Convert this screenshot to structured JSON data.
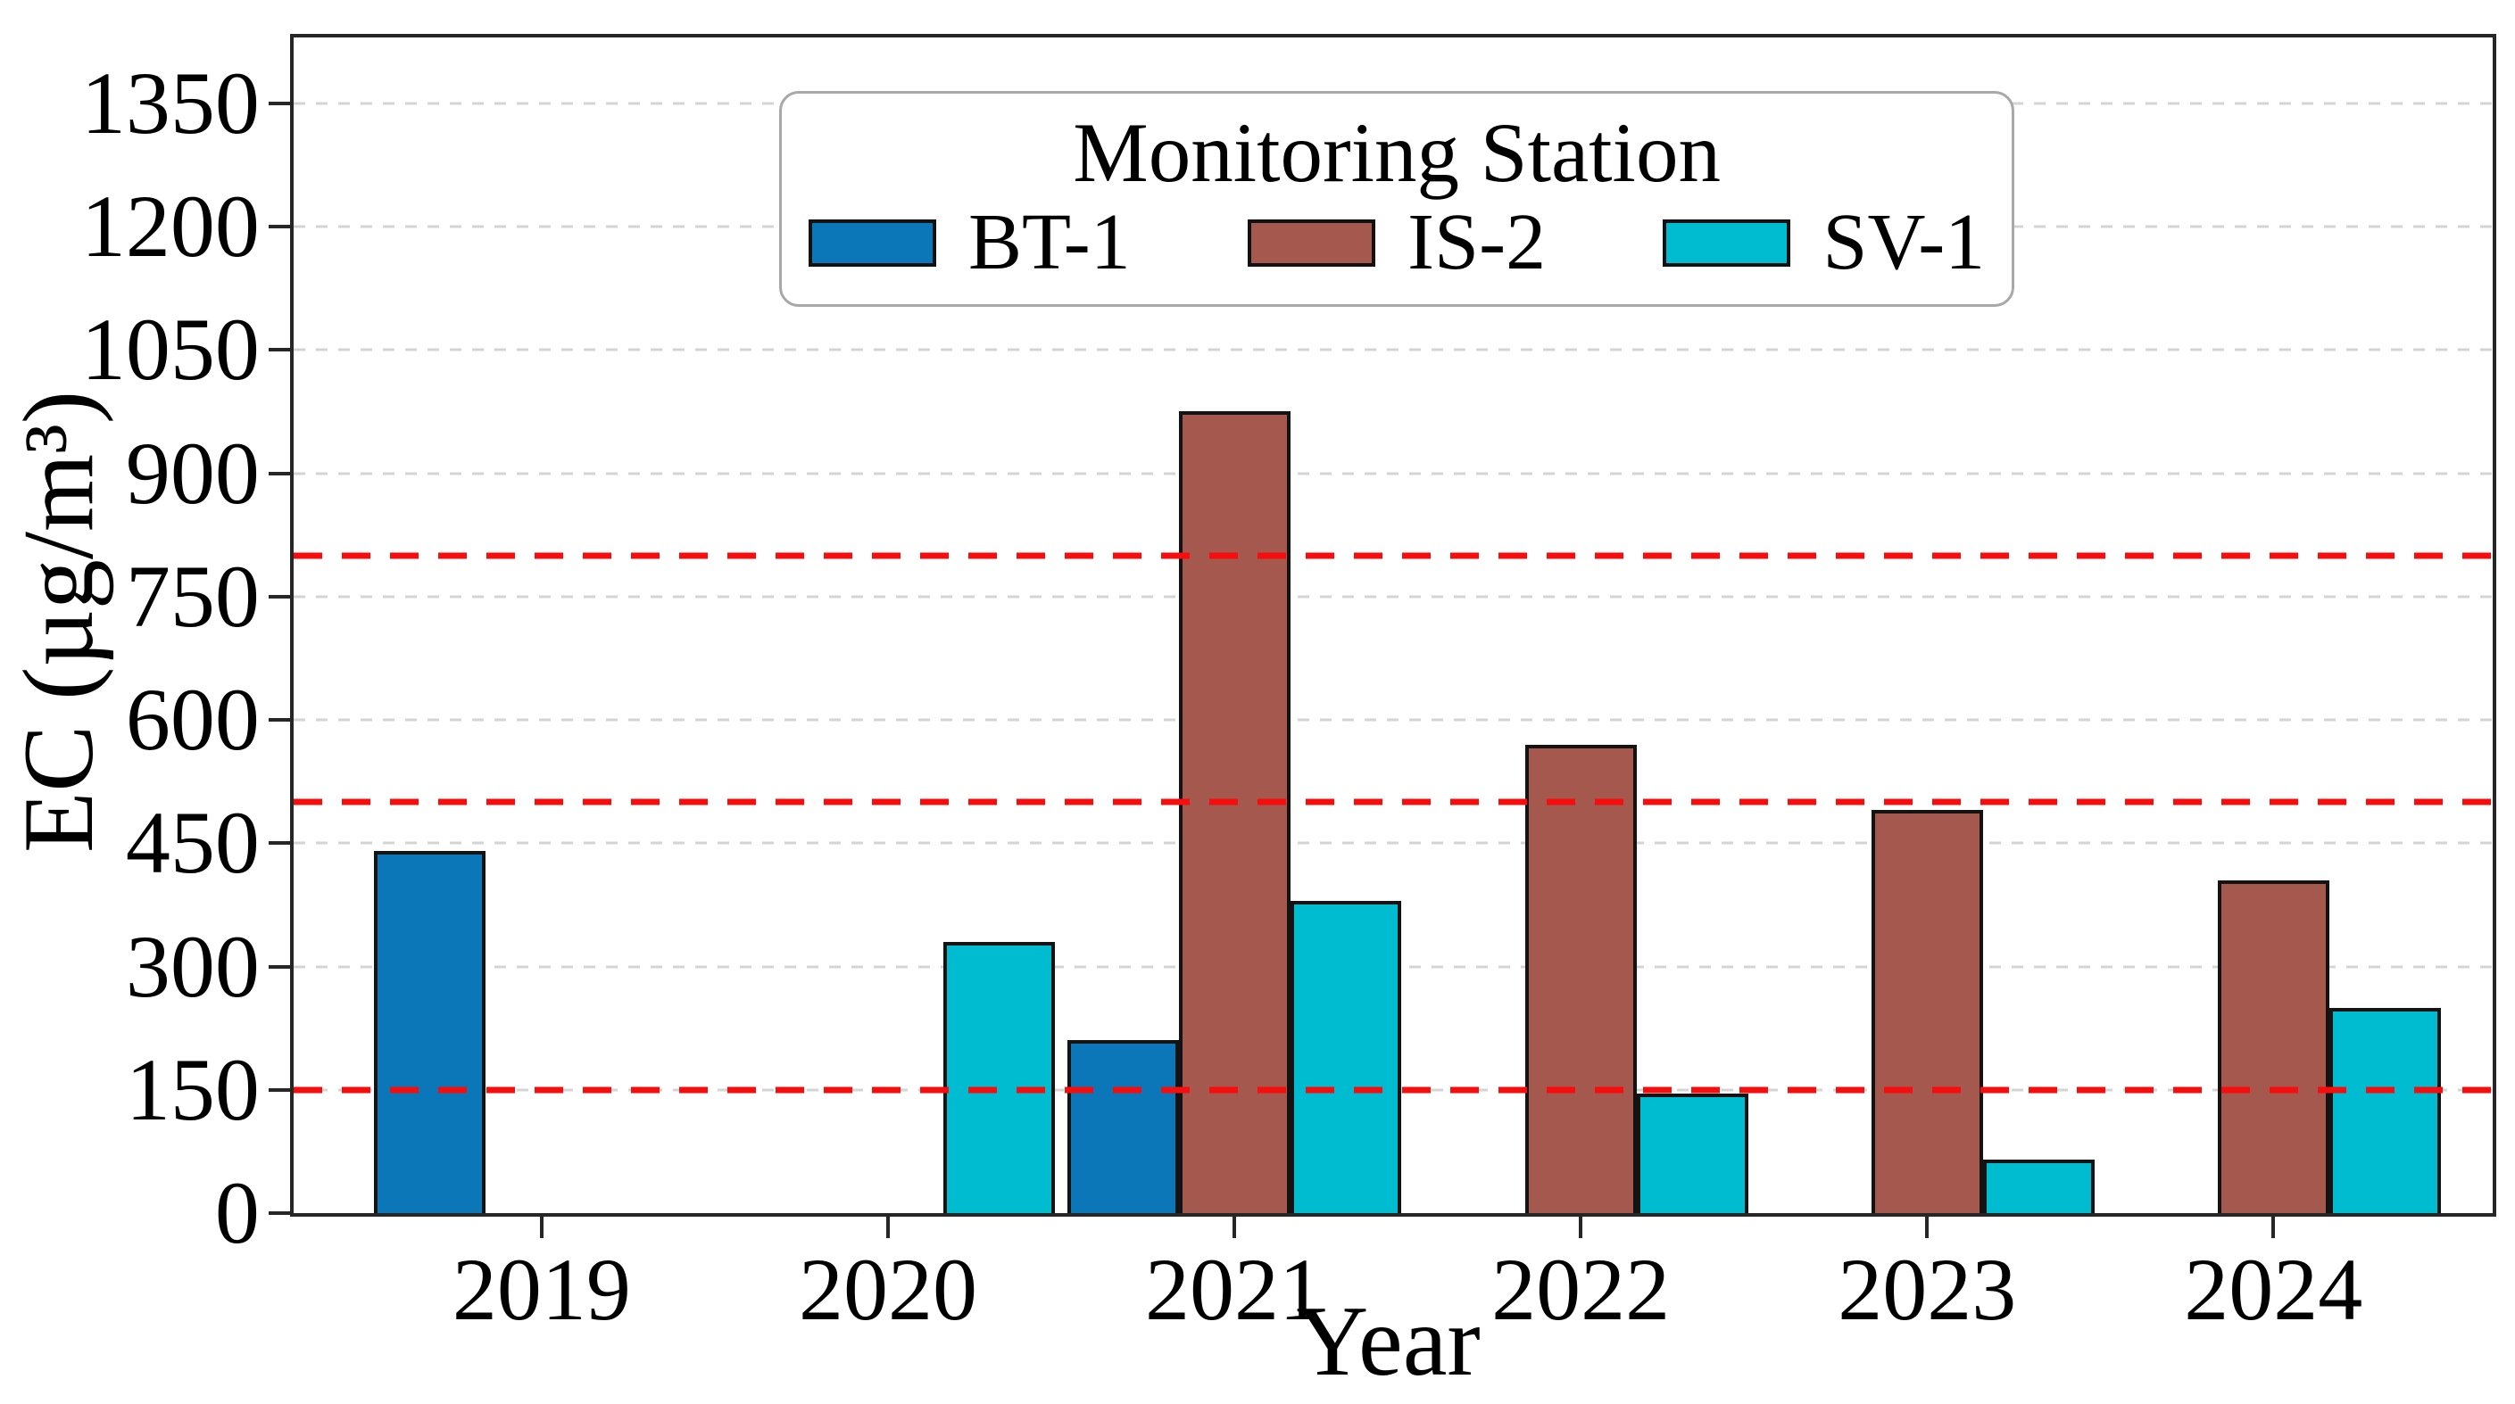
{
  "chart_data": {
    "type": "bar",
    "title": "",
    "xlabel": "Year",
    "ylabel": "EC (µg/m³)",
    "categories": [
      "2019",
      "2020",
      "2021",
      "2022",
      "2023",
      "2024"
    ],
    "series": [
      {
        "name": "BT-1",
        "color": "#0b76b8",
        "values": [
          440,
          null,
          210,
          null,
          null,
          null
        ]
      },
      {
        "name": "IS-2",
        "color": "#a5584e",
        "values": [
          null,
          null,
          975,
          570,
          490,
          405
        ]
      },
      {
        "name": "SV-1",
        "color": "#00bcd0",
        "values": [
          null,
          330,
          380,
          145,
          65,
          250
        ]
      }
    ],
    "y_ticks": [
      0,
      150,
      300,
      450,
      600,
      750,
      900,
      1050,
      1200,
      1350
    ],
    "ylim": [
      0,
      1430
    ],
    "reference_lines": {
      "values": [
        150,
        500,
        800
      ],
      "color": "#f60d0d",
      "style": "dashed"
    },
    "grid": {
      "axis": "y",
      "style": "dashed",
      "color": "#d4d4d4"
    },
    "legend": {
      "title": "Monitoring Station",
      "position": "upper center"
    }
  }
}
